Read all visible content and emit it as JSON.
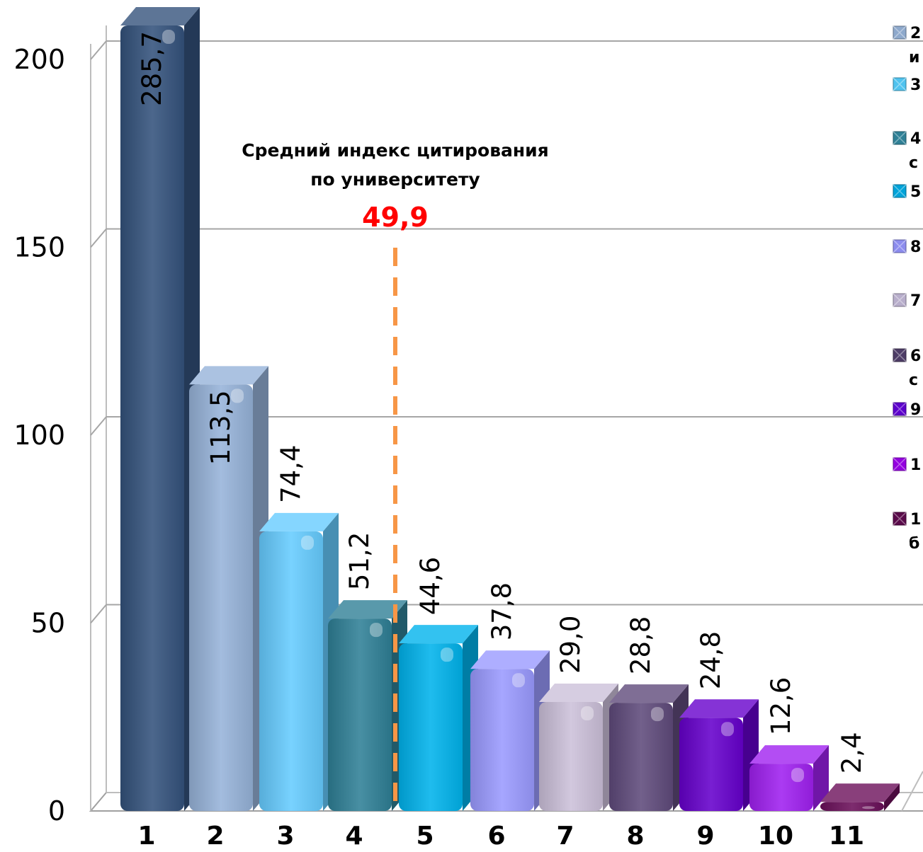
{
  "chart_data": {
    "type": "bar",
    "categories": [
      "1",
      "2",
      "3",
      "4",
      "5",
      "6",
      "7",
      "8",
      "9",
      "10",
      "11"
    ],
    "values": [
      285.7,
      113.5,
      74.4,
      51.2,
      44.6,
      37.8,
      29.0,
      28.8,
      24.8,
      12.6,
      2.4
    ],
    "value_labels": [
      "285,7",
      "113,5",
      "74,4",
      "51,2",
      "44,6",
      "37,8",
      "29,0",
      "28,8",
      "24,8",
      "12,6",
      "2,4"
    ],
    "ylim": [
      0,
      210
    ],
    "yticks": [
      0,
      50,
      100,
      150,
      200
    ],
    "ytick_labels": [
      "0",
      "50",
      "100",
      "150",
      "200"
    ],
    "grid": true,
    "legend_position": "right",
    "colors": [
      "#34527c",
      "#96b3d9",
      "#66ccff",
      "#2f8096",
      "#00b3ec",
      "#9a9aff",
      "#ccc0da",
      "#5f4a7b",
      "#6600cc",
      "#a020f0",
      "#6b0f5a"
    ],
    "annotation": {
      "line1": "Средний индекс цитирования",
      "line2": "по университету",
      "value": 49.9,
      "value_label": "49,9",
      "line_color": "#f79646"
    },
    "legend": [
      {
        "line1": "2",
        "line2": "и"
      },
      {
        "line1": "3",
        "line2": ""
      },
      {
        "line1": "4",
        "line2": "с"
      },
      {
        "line1": "5",
        "line2": ""
      },
      {
        "line1": "8",
        "line2": ""
      },
      {
        "line1": "7",
        "line2": ""
      },
      {
        "line1": "6",
        "line2": "с"
      },
      {
        "line1": "9",
        "line2": ""
      },
      {
        "line1": "1",
        "line2": ""
      },
      {
        "line1": "1",
        "line2": "б"
      }
    ],
    "legend_colors": [
      "#8ea9cc",
      "#4fc3ef",
      "#2f8096",
      "#00a3d9",
      "#8c8cee",
      "#b8aecb",
      "#4d3c66",
      "#5c00cc",
      "#9400e0",
      "#5a0a4a"
    ]
  }
}
